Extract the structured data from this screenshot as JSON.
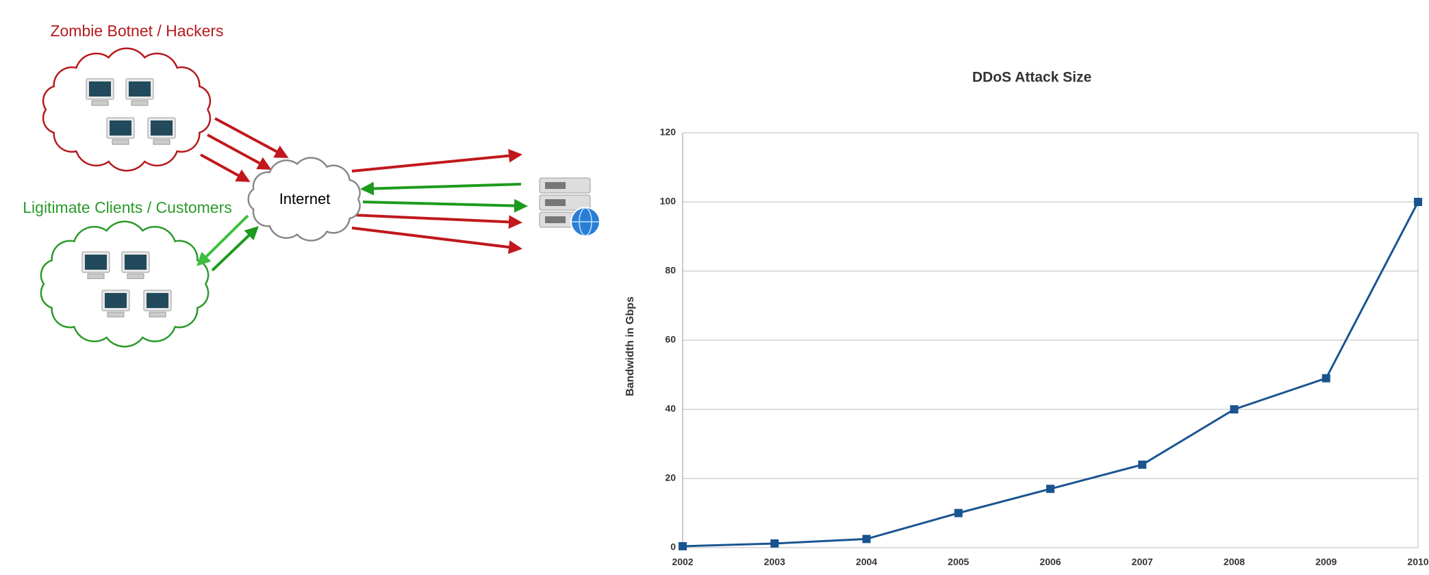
{
  "diagram": {
    "botnet_label": "Zombie Botnet / Hackers",
    "clients_label": "Ligitimate Clients / Customers",
    "internet_label": "Internet"
  },
  "chart_data": {
    "type": "line",
    "title": "DDoS Attack Size",
    "y_label": "Bandwidth in Gbps",
    "categories": [
      "2002",
      "2003",
      "2004",
      "2005",
      "2006",
      "2007",
      "2008",
      "2009",
      "2010"
    ],
    "series": [
      {
        "name": "DDoS Attack Size",
        "color": "#1a5490",
        "values": [
          0.4,
          1.2,
          2.5,
          10,
          17,
          24,
          40,
          49,
          100
        ]
      }
    ],
    "ylim": [
      0,
      120
    ],
    "yticks": [
      0,
      20,
      40,
      60,
      80,
      100,
      120
    ],
    "grid": true
  }
}
